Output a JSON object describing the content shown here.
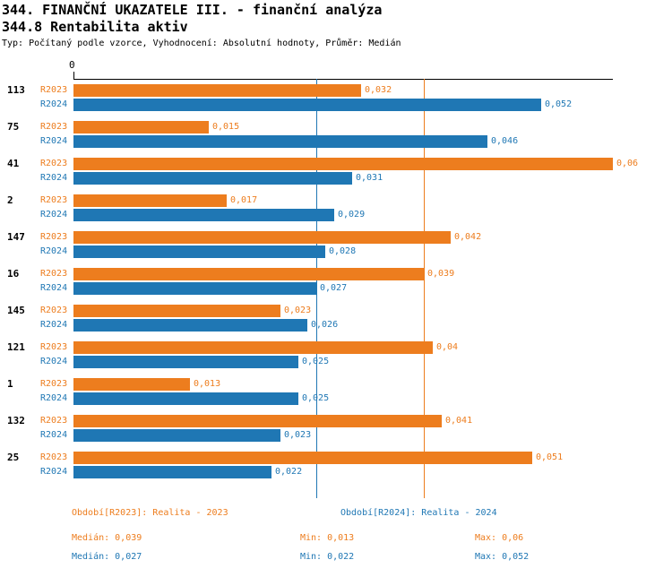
{
  "chart_data": {
    "type": "bar",
    "orientation": "horizontal",
    "title": "344. FINANČNÍ UKAZATELE III. - finanční analýza",
    "subtitle": "344.8 Rentabilita aktiv",
    "note": "Typ: Počítaný podle vzorce, Vyhodnocení: Absolutní hodnoty, Průměr: Medián",
    "axis_zero_label": "0",
    "xlim": [
      0,
      0.06
    ],
    "grid": "off",
    "legend_position": "bottom",
    "series": [
      {
        "name": "R2023",
        "legend": "Období[R2023]: Realita - 2023",
        "color": "#ED7D1E",
        "median": 0.039,
        "median_label": "Medián: 0,039",
        "min_label": "Min: 0,013",
        "max_label": "Max: 0,06"
      },
      {
        "name": "R2024",
        "legend": "Období[R2024]: Realita - 2024",
        "color": "#1F77B4",
        "median": 0.027,
        "median_label": "Medián: 0,027",
        "min_label": "Min: 0,022",
        "max_label": "Max: 0,052"
      }
    ],
    "groups": [
      {
        "id": "113",
        "values": [
          0.032,
          0.052
        ],
        "labels": [
          "0,032",
          "0,052"
        ]
      },
      {
        "id": "75",
        "values": [
          0.015,
          0.046
        ],
        "labels": [
          "0,015",
          "0,046"
        ]
      },
      {
        "id": "41",
        "values": [
          0.06,
          0.031
        ],
        "labels": [
          "0,06",
          "0,031"
        ]
      },
      {
        "id": "2",
        "values": [
          0.017,
          0.029
        ],
        "labels": [
          "0,017",
          "0,029"
        ]
      },
      {
        "id": "147",
        "values": [
          0.042,
          0.028
        ],
        "labels": [
          "0,042",
          "0,028"
        ]
      },
      {
        "id": "16",
        "values": [
          0.039,
          0.027
        ],
        "labels": [
          "0,039",
          "0,027"
        ]
      },
      {
        "id": "145",
        "values": [
          0.023,
          0.026
        ],
        "labels": [
          "0,023",
          "0,026"
        ]
      },
      {
        "id": "121",
        "values": [
          0.04,
          0.025
        ],
        "labels": [
          "0,04",
          "0,025"
        ]
      },
      {
        "id": "1",
        "values": [
          0.013,
          0.025
        ],
        "labels": [
          "0,013",
          "0,025"
        ]
      },
      {
        "id": "132",
        "values": [
          0.041,
          0.023
        ],
        "labels": [
          "0,041",
          "0,023"
        ]
      },
      {
        "id": "25",
        "values": [
          0.051,
          0.022
        ],
        "labels": [
          "0,051",
          "0,022"
        ]
      }
    ]
  }
}
